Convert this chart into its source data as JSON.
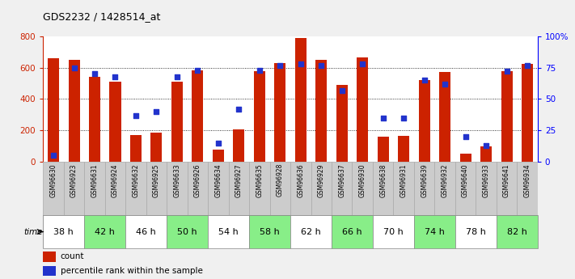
{
  "title": "GDS2232 / 1428514_at",
  "samples": [
    "GSM96630",
    "GSM96923",
    "GSM96631",
    "GSM96924",
    "GSM96632",
    "GSM96925",
    "GSM96633",
    "GSM96926",
    "GSM96634",
    "GSM96927",
    "GSM96635",
    "GSM96928",
    "GSM96636",
    "GSM96929",
    "GSM96637",
    "GSM96930",
    "GSM96638",
    "GSM96931",
    "GSM96639",
    "GSM96932",
    "GSM96640",
    "GSM96933",
    "GSM96641",
    "GSM96934"
  ],
  "counts": [
    660,
    650,
    540,
    510,
    170,
    185,
    510,
    585,
    80,
    205,
    580,
    630,
    790,
    650,
    490,
    665,
    160,
    165,
    520,
    570,
    50,
    100,
    580,
    625
  ],
  "percentiles": [
    5,
    75,
    70,
    68,
    37,
    40,
    68,
    73,
    15,
    42,
    73,
    77,
    78,
    77,
    57,
    78,
    35,
    35,
    65,
    62,
    20,
    13,
    72,
    77
  ],
  "time_groups": [
    {
      "label": "38 h",
      "count": 2,
      "color": "#ffffff"
    },
    {
      "label": "42 h",
      "count": 2,
      "color": "#88ee88"
    },
    {
      "label": "46 h",
      "count": 2,
      "color": "#ffffff"
    },
    {
      "label": "50 h",
      "count": 2,
      "color": "#88ee88"
    },
    {
      "label": "54 h",
      "count": 2,
      "color": "#ffffff"
    },
    {
      "label": "58 h",
      "count": 2,
      "color": "#88ee88"
    },
    {
      "label": "62 h",
      "count": 2,
      "color": "#ffffff"
    },
    {
      "label": "66 h",
      "count": 2,
      "color": "#88ee88"
    },
    {
      "label": "70 h",
      "count": 2,
      "color": "#ffffff"
    },
    {
      "label": "74 h",
      "count": 2,
      "color": "#88ee88"
    },
    {
      "label": "78 h",
      "count": 2,
      "color": "#ffffff"
    },
    {
      "label": "82 h",
      "count": 2,
      "color": "#88ee88"
    }
  ],
  "bar_color": "#cc2200",
  "dot_color": "#2233cc",
  "left_ylim": [
    0,
    800
  ],
  "right_ylim": [
    0,
    100
  ],
  "left_yticks": [
    0,
    200,
    400,
    600,
    800
  ],
  "right_yticks": [
    0,
    25,
    50,
    75,
    100
  ],
  "right_yticklabels": [
    "0",
    "25",
    "50",
    "75",
    "100%"
  ],
  "grid_values": [
    200,
    400,
    600
  ],
  "chart_bg": "#ffffff",
  "fig_bg": "#f0f0f0",
  "sample_bg": "#cccccc",
  "sample_border": "#aaaaaa"
}
